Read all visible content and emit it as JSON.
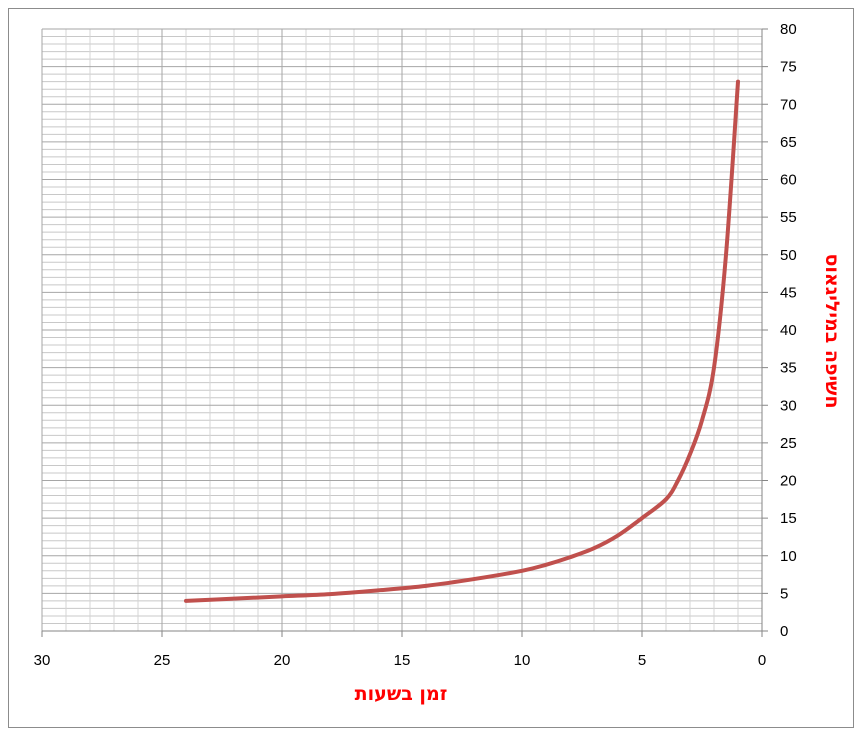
{
  "chart_data": {
    "type": "line",
    "title": "",
    "xlabel": "זמן בשעות",
    "ylabel": "חשיפה במיליגאוס",
    "x_reversed": true,
    "xlim": [
      0,
      30
    ],
    "ylim": [
      0,
      80
    ],
    "x_ticks": [
      30,
      25,
      20,
      15,
      10,
      5,
      0
    ],
    "y_ticks": [
      0,
      5,
      10,
      15,
      20,
      25,
      30,
      35,
      40,
      45,
      50,
      55,
      60,
      65,
      70,
      75,
      80
    ],
    "grid": true,
    "legend": "none",
    "colors": {
      "line": "#c0504d",
      "axis_title": "#ff0000",
      "grid": "#a6a6a6"
    },
    "series": [
      {
        "x": [
          1,
          1.5,
          2,
          2.5,
          3,
          3.5,
          4,
          5,
          6,
          7,
          8,
          9,
          10,
          12,
          14,
          16,
          18,
          20,
          22,
          24
        ],
        "y": [
          73,
          50,
          35,
          28,
          23.5,
          20,
          17.5,
          15,
          12.7,
          11,
          9.8,
          8.8,
          8,
          6.9,
          6,
          5.4,
          4.9,
          4.6,
          4.3,
          4
        ]
      }
    ]
  }
}
